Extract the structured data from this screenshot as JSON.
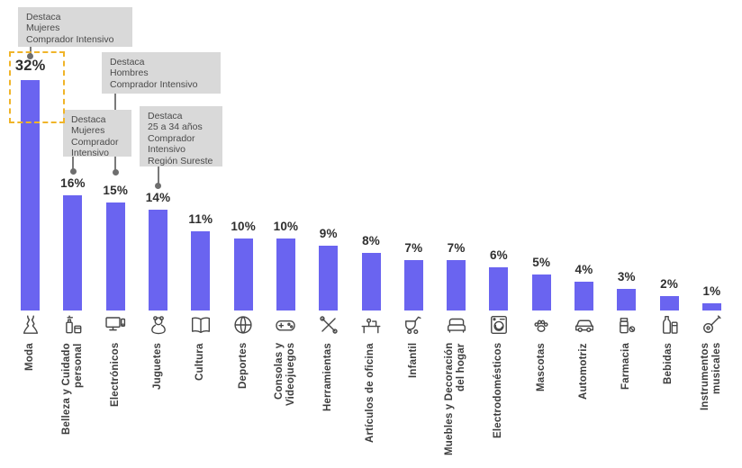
{
  "chart_data": {
    "type": "bar",
    "title": "",
    "unit": "%",
    "grid": false,
    "ylim": [
      0,
      32
    ],
    "categories": [
      "Moda",
      "Belleza y Cuidado\npersonal",
      "Electrónicos",
      "Juguetes",
      "Cultura",
      "Deportes",
      "Consolas y\nVideojuegos",
      "Herramientas",
      "Artículos de oficina",
      "Infantil",
      "Muebles y Decoración\ndel hogar",
      "Electrodomésticos",
      "Mascotas",
      "Automotriz",
      "Farmacia",
      "Bebidas",
      "Instrumentos\nmusicales"
    ],
    "values": [
      32,
      16,
      15,
      14,
      11,
      10,
      10,
      9,
      8,
      7,
      7,
      6,
      5,
      4,
      3,
      2,
      1
    ],
    "value_labels": [
      "32%",
      "16%",
      "15%",
      "14%",
      "11%",
      "10%",
      "10%",
      "9%",
      "8%",
      "7%",
      "7%",
      "6%",
      "5%",
      "4%",
      "3%",
      "2%",
      "1%"
    ],
    "icons": [
      "dress-icon",
      "cosmetics-icon",
      "monitor-icon",
      "teddy-bear-icon",
      "book-icon",
      "ball-icon",
      "gamepad-icon",
      "tools-icon",
      "office-desk-icon",
      "stroller-icon",
      "furniture-icon",
      "washing-machine-icon",
      "pet-paw-icon",
      "car-icon",
      "pharmacy-icon",
      "beverage-icon",
      "guitar-icon"
    ],
    "annotations": [
      {
        "text": "Destaca\nMujeres\nComprador Intensivo",
        "target": "Moda"
      },
      {
        "text": "Destaca\nHombres\nComprador Intensivo",
        "target": "Electrónicos"
      },
      {
        "text": "Destaca\nMujeres\nComprador\nIntensivo",
        "target": "Belleza y Cuidado personal"
      },
      {
        "text": "Destaca\n25 a 34 años\nComprador\nIntensivo\nRegión Sureste",
        "target": "Juguetes"
      }
    ],
    "highlight": {
      "category": "Moda",
      "style": "dashed",
      "border_color": "#F0B429"
    },
    "colors": {
      "bar": "#6A64F0",
      "annotation_bg": "#D9D9D9",
      "connector": "#7A7A7A",
      "value_text": "#2E2E2E",
      "label_text": "#3D3D3D"
    },
    "legend": null
  }
}
